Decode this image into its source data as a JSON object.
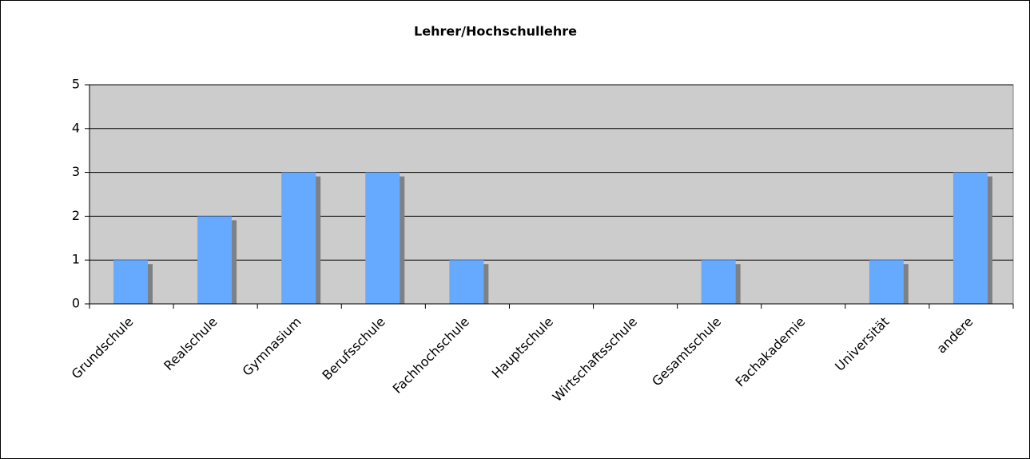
{
  "chart_data": {
    "type": "bar",
    "title": "Lehrer/Hochschullehre",
    "categories": [
      "Grundschule",
      "Realschule",
      "Gymnasium",
      "Berufsschule",
      "Fachhochschule",
      "Hauptschule",
      "Wirtschaftsschule",
      "Gesamtschule",
      "Fachakademie",
      "Universität",
      "andere"
    ],
    "values": [
      1,
      2,
      3,
      3,
      1,
      0,
      0,
      1,
      0,
      1,
      3
    ],
    "color": "#66aaff",
    "shadow_color": "#808080",
    "plot_background": "#cccccc",
    "ylim": [
      0,
      5
    ],
    "yticks": [
      0,
      1,
      2,
      3,
      4,
      5
    ],
    "grid": true
  }
}
